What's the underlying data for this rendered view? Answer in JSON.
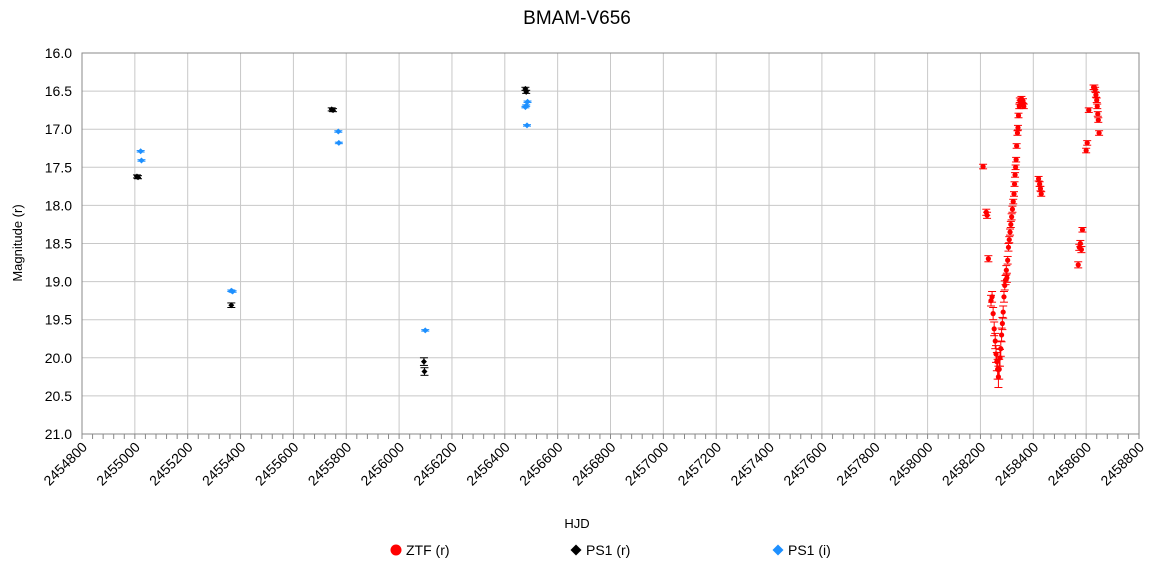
{
  "chart_data": {
    "type": "scatter",
    "title": "BMAM-V656",
    "xlabel": "HJD",
    "ylabel": "Magnitude (r)",
    "xlim": [
      2454800,
      2458800
    ],
    "ylim": [
      16.0,
      21.0
    ],
    "y_inverted": true,
    "grid": true,
    "legend_position": "bottom",
    "x_ticks": [
      "2454800",
      "2455000",
      "2455200",
      "2455400",
      "2455600",
      "2455800",
      "2456000",
      "2456200",
      "2456400",
      "2456600",
      "2456800",
      "2457000",
      "2457200",
      "2457400",
      "2457600",
      "2457800",
      "2458000",
      "2458200",
      "2458400",
      "2458600",
      "2458800"
    ],
    "y_ticks": [
      "16.0",
      "16.5",
      "17.0",
      "17.5",
      "18.0",
      "18.5",
      "19.0",
      "19.5",
      "20.0",
      "20.5",
      "21.0"
    ],
    "series": [
      {
        "name": "ZTF (r)",
        "color": "#ff0000",
        "marker": "circle",
        "points": [
          [
            2458210,
            17.49,
            0.03
          ],
          [
            2458222,
            18.09,
            0.04
          ],
          [
            2458225,
            18.13,
            0.04
          ],
          [
            2458230,
            18.7,
            0.04
          ],
          [
            2458240,
            19.25,
            0.07
          ],
          [
            2458244,
            19.2,
            0.07
          ],
          [
            2458248,
            19.42,
            0.08
          ],
          [
            2458252,
            19.62,
            0.09
          ],
          [
            2458256,
            19.78,
            0.1
          ],
          [
            2458259,
            19.95,
            0.11
          ],
          [
            2458262,
            20.05,
            0.12
          ],
          [
            2458265,
            20.15,
            0.13
          ],
          [
            2458268,
            20.25,
            0.14
          ],
          [
            2458271,
            20.15,
            0.13
          ],
          [
            2458274,
            20.0,
            0.11
          ],
          [
            2458277,
            19.88,
            0.1
          ],
          [
            2458280,
            19.7,
            0.09
          ],
          [
            2458283,
            19.55,
            0.08
          ],
          [
            2458286,
            19.4,
            0.08
          ],
          [
            2458289,
            19.2,
            0.07
          ],
          [
            2458292,
            19.05,
            0.06
          ],
          [
            2458295,
            18.98,
            0.06
          ],
          [
            2458298,
            18.85,
            0.06
          ],
          [
            2458300,
            18.95,
            0.06
          ],
          [
            2458303,
            18.72,
            0.05
          ],
          [
            2458306,
            18.55,
            0.05
          ],
          [
            2458309,
            18.45,
            0.04
          ],
          [
            2458312,
            18.35,
            0.04
          ],
          [
            2458315,
            18.25,
            0.04
          ],
          [
            2458318,
            18.15,
            0.04
          ],
          [
            2458321,
            18.05,
            0.04
          ],
          [
            2458324,
            17.95,
            0.03
          ],
          [
            2458327,
            17.85,
            0.03
          ],
          [
            2458329,
            17.72,
            0.03
          ],
          [
            2458331,
            17.6,
            0.03
          ],
          [
            2458333,
            17.5,
            0.03
          ],
          [
            2458335,
            17.4,
            0.03
          ],
          [
            2458337,
            17.22,
            0.03
          ],
          [
            2458340,
            17.05,
            0.03
          ],
          [
            2458342,
            16.98,
            0.03
          ],
          [
            2458344,
            16.82,
            0.03
          ],
          [
            2458347,
            16.7,
            0.03
          ],
          [
            2458349,
            16.62,
            0.03
          ],
          [
            2458352,
            16.65,
            0.03
          ],
          [
            2458355,
            16.6,
            0.03
          ],
          [
            2458358,
            16.68,
            0.03
          ],
          [
            2458361,
            16.63,
            0.03
          ],
          [
            2458364,
            16.7,
            0.03
          ],
          [
            2458420,
            17.65,
            0.03
          ],
          [
            2458424,
            17.72,
            0.03
          ],
          [
            2458427,
            17.78,
            0.03
          ],
          [
            2458430,
            17.85,
            0.03
          ],
          [
            2458570,
            18.78,
            0.04
          ],
          [
            2458574,
            18.55,
            0.04
          ],
          [
            2458578,
            18.5,
            0.04
          ],
          [
            2458582,
            18.58,
            0.04
          ],
          [
            2458586,
            18.32,
            0.03
          ],
          [
            2458600,
            17.28,
            0.03
          ],
          [
            2458604,
            17.18,
            0.03
          ],
          [
            2458610,
            16.75,
            0.03
          ],
          [
            2458628,
            16.45,
            0.03
          ],
          [
            2458631,
            16.45,
            0.03
          ],
          [
            2458634,
            16.48,
            0.03
          ],
          [
            2458637,
            16.55,
            0.03
          ],
          [
            2458640,
            16.62,
            0.03
          ],
          [
            2458642,
            16.7,
            0.03
          ],
          [
            2458644,
            16.8,
            0.03
          ],
          [
            2458646,
            16.88,
            0.03
          ],
          [
            2458649,
            17.05,
            0.03
          ]
        ]
      },
      {
        "name": "PS1 (r)",
        "color": "#000000",
        "marker": "diamond",
        "points": [
          [
            2455008,
            17.62,
            0.02
          ],
          [
            2455012,
            17.63,
            0.02
          ],
          [
            2455365,
            19.31,
            0.03
          ],
          [
            2455745,
            16.74,
            0.02
          ],
          [
            2455750,
            16.75,
            0.02
          ],
          [
            2456094,
            20.05,
            0.05
          ],
          [
            2456096,
            20.18,
            0.05
          ],
          [
            2456478,
            16.47,
            0.02
          ],
          [
            2456481,
            16.51,
            0.02
          ]
        ]
      },
      {
        "name": "PS1 (i)",
        "color": "#1e90ff",
        "marker": "diamond",
        "points": [
          [
            2455022,
            17.29,
            0.01
          ],
          [
            2455025,
            17.41,
            0.01
          ],
          [
            2455365,
            19.12,
            0.01
          ],
          [
            2455370,
            19.13,
            0.01
          ],
          [
            2455770,
            17.03,
            0.01
          ],
          [
            2455772,
            17.18,
            0.01
          ],
          [
            2456099,
            19.64,
            0.01
          ],
          [
            2456478,
            16.71,
            0.01
          ],
          [
            2456481,
            16.69,
            0.01
          ],
          [
            2456484,
            16.95,
            0.01
          ],
          [
            2456486,
            16.64,
            0.01
          ]
        ]
      }
    ]
  }
}
